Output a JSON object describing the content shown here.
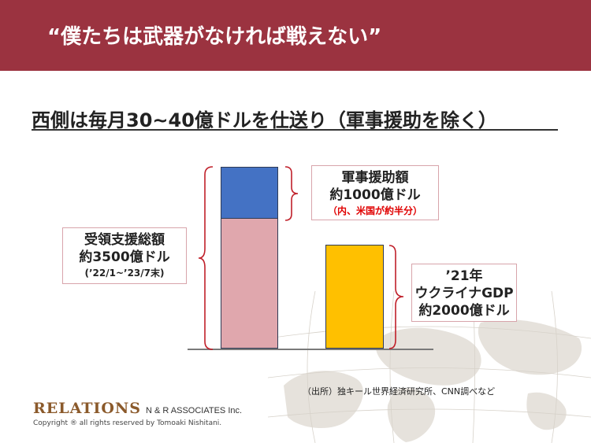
{
  "header": {
    "title": "“僕たちは武器がなければ戦えない”"
  },
  "slide": {
    "subtitle": "西側は毎月30~40億ドルを仕送り（軍事援助を除く）"
  },
  "chart_data": {
    "type": "bar",
    "unit": "億ドル",
    "stacked_bar": {
      "total": 3500,
      "segments": [
        {
          "label": "軍事援助額",
          "value": 1000
        },
        {
          "label": "",
          "value": 2500
        }
      ]
    },
    "single_bar": {
      "value": 2000
    },
    "annotations": {
      "total_box": {
        "line1": "受領支援総額",
        "line2": "約3500億ドル",
        "line3": "(’22/1~’23/7末)"
      },
      "military_box": {
        "line1": "軍事援助額",
        "line2": "約1000億ドル",
        "line3": "（内、米国が約半分）"
      },
      "gdp_box": {
        "line1": "’21年",
        "line2": "ウクライナGDP",
        "line3": "約2000億ドル"
      }
    },
    "ylim": [
      0,
      3500
    ],
    "colors": {
      "military": "#4472c4",
      "rest": "#e0a7ad",
      "gdp": "#ffc000",
      "brace": "#c0202a"
    }
  },
  "footer": {
    "source": "（出所）独キール世界経済研究所、CNN調べなど",
    "logo_main": "RELATIONS",
    "logo_sub": "N & R ASSOCIATES Inc.",
    "copyright": "Copyright ® all rights reserved by Tomoaki Nishitani."
  }
}
